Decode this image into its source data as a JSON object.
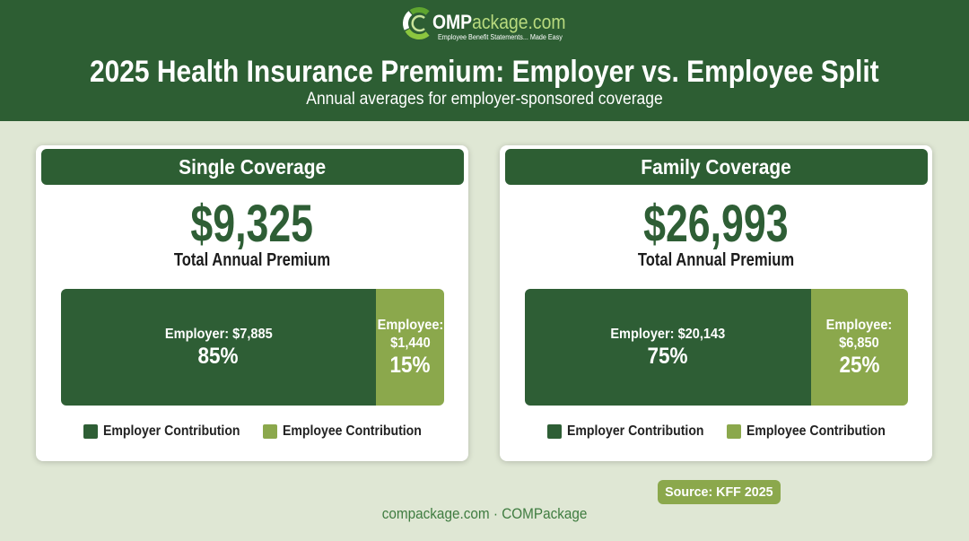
{
  "colors": {
    "header_bg": "#2d5e33",
    "page_bg": "#dfe7d4",
    "card_bg": "#ffffff",
    "accent": "#2e5e35",
    "employee": "#8ba84c",
    "footer_text": "#3f7c40"
  },
  "brand": {
    "logo_icon": "comp-ring-icon",
    "logo_bold": "OMP",
    "logo_rest": "ackage.com",
    "tagline": "Employee Benefit Statements... Made Easy"
  },
  "header": {
    "title": "2025 Health Insurance Premium: Employer vs. Employee Split",
    "subtitle": "Annual averages for employer-sponsored coverage"
  },
  "footer": {
    "source": "Source: KFF 2025",
    "site": "compackage.com · COMPackage"
  },
  "chart_data": [
    {
      "type": "bar",
      "stacked": true,
      "orientation": "horizontal",
      "legend": "bottom",
      "title": "Single Coverage",
      "total": "$9,325",
      "total_label": "Total Annual Premium",
      "series": [
        {
          "name": "Employer Contribution",
          "value": 7885,
          "label": "Employer: $7,885",
          "percent": "85%",
          "color": "#2e5e35"
        },
        {
          "name": "Employee Contribution",
          "value": 1440,
          "label": "Employee: $1,440",
          "percent": "15%",
          "color": "#8ba84c"
        }
      ]
    },
    {
      "type": "bar",
      "stacked": true,
      "orientation": "horizontal",
      "legend": "bottom",
      "title": "Family Coverage",
      "total": "$26,993",
      "total_label": "Total Annual Premium",
      "series": [
        {
          "name": "Employer Contribution",
          "value": 20143,
          "label": "Employer: $20,143",
          "percent": "75%",
          "color": "#2e5e35"
        },
        {
          "name": "Employee Contribution",
          "value": 6850,
          "label": "Employee: $6,850",
          "percent": "25%",
          "color": "#8ba84c"
        }
      ]
    }
  ]
}
